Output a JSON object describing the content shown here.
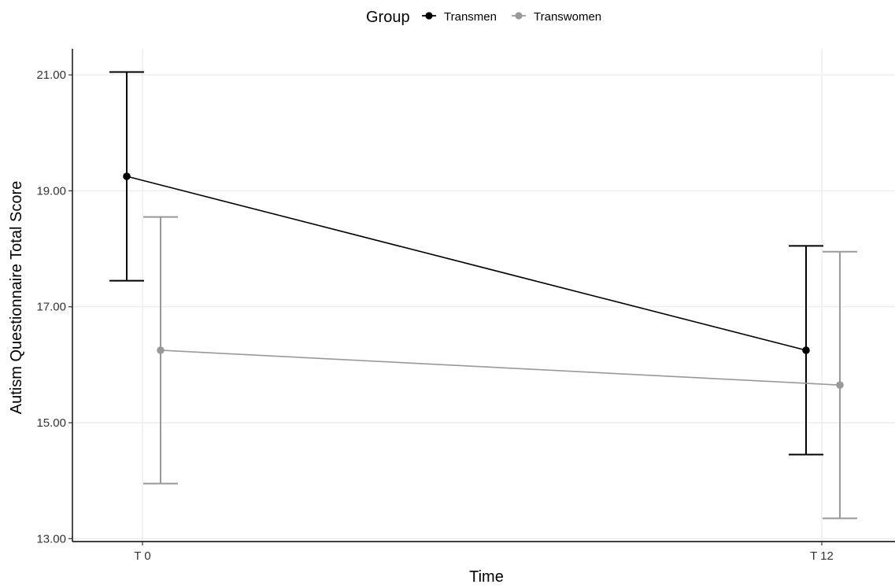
{
  "chart_data": {
    "type": "line",
    "title": "",
    "xlabel": "Time",
    "ylabel": "Autism Questionnaire Total Score",
    "categories": [
      "T 0",
      "T 12"
    ],
    "ylim": [
      12.95,
      21.45
    ],
    "yticks": [
      13.0,
      15.0,
      17.0,
      19.0,
      21.0
    ],
    "ytick_labels": [
      "13.00",
      "15.00",
      "17.00",
      "19.00",
      "21.00"
    ],
    "grid": true,
    "legend": {
      "title": "Group",
      "position": "top"
    },
    "series": [
      {
        "name": "Transmen",
        "color": "#000000",
        "values": [
          19.25,
          16.25
        ],
        "lower": [
          17.45,
          14.45
        ],
        "upper": [
          21.05,
          18.05
        ]
      },
      {
        "name": "Transwomen",
        "color": "#999999",
        "values": [
          16.25,
          15.65
        ],
        "lower": [
          13.95,
          13.35
        ],
        "upper": [
          18.55,
          17.95
        ]
      }
    ]
  }
}
